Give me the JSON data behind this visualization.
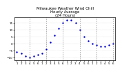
{
  "title": "Milwaukee Weather Wind Chill\nHourly Average\n(24 Hours)",
  "hours": [
    1,
    2,
    3,
    4,
    5,
    6,
    7,
    8,
    9,
    10,
    11,
    12,
    13,
    14,
    15,
    16,
    17,
    18,
    19,
    20,
    21,
    22,
    23,
    24
  ],
  "wind_chill": [
    -6,
    -7,
    -9,
    -10,
    -9,
    -8,
    -7,
    -4,
    1,
    6,
    11,
    15,
    17,
    17,
    15,
    10,
    5,
    2,
    0,
    -1,
    -2,
    -2,
    -1,
    0
  ],
  "line_color": "#0000cc",
  "vgrid_color": "#888888",
  "hgrid_color": "#cccccc",
  "bg_color": "#ffffff",
  "title_color": "#000000",
  "ylim": [
    -12,
    19
  ],
  "xlim": [
    0.5,
    24.5
  ],
  "title_fontsize": 4.0,
  "tick_fontsize": 3.0,
  "marker_size": 1.5,
  "vgrid_positions": [
    4,
    8,
    12,
    16,
    20,
    24
  ]
}
